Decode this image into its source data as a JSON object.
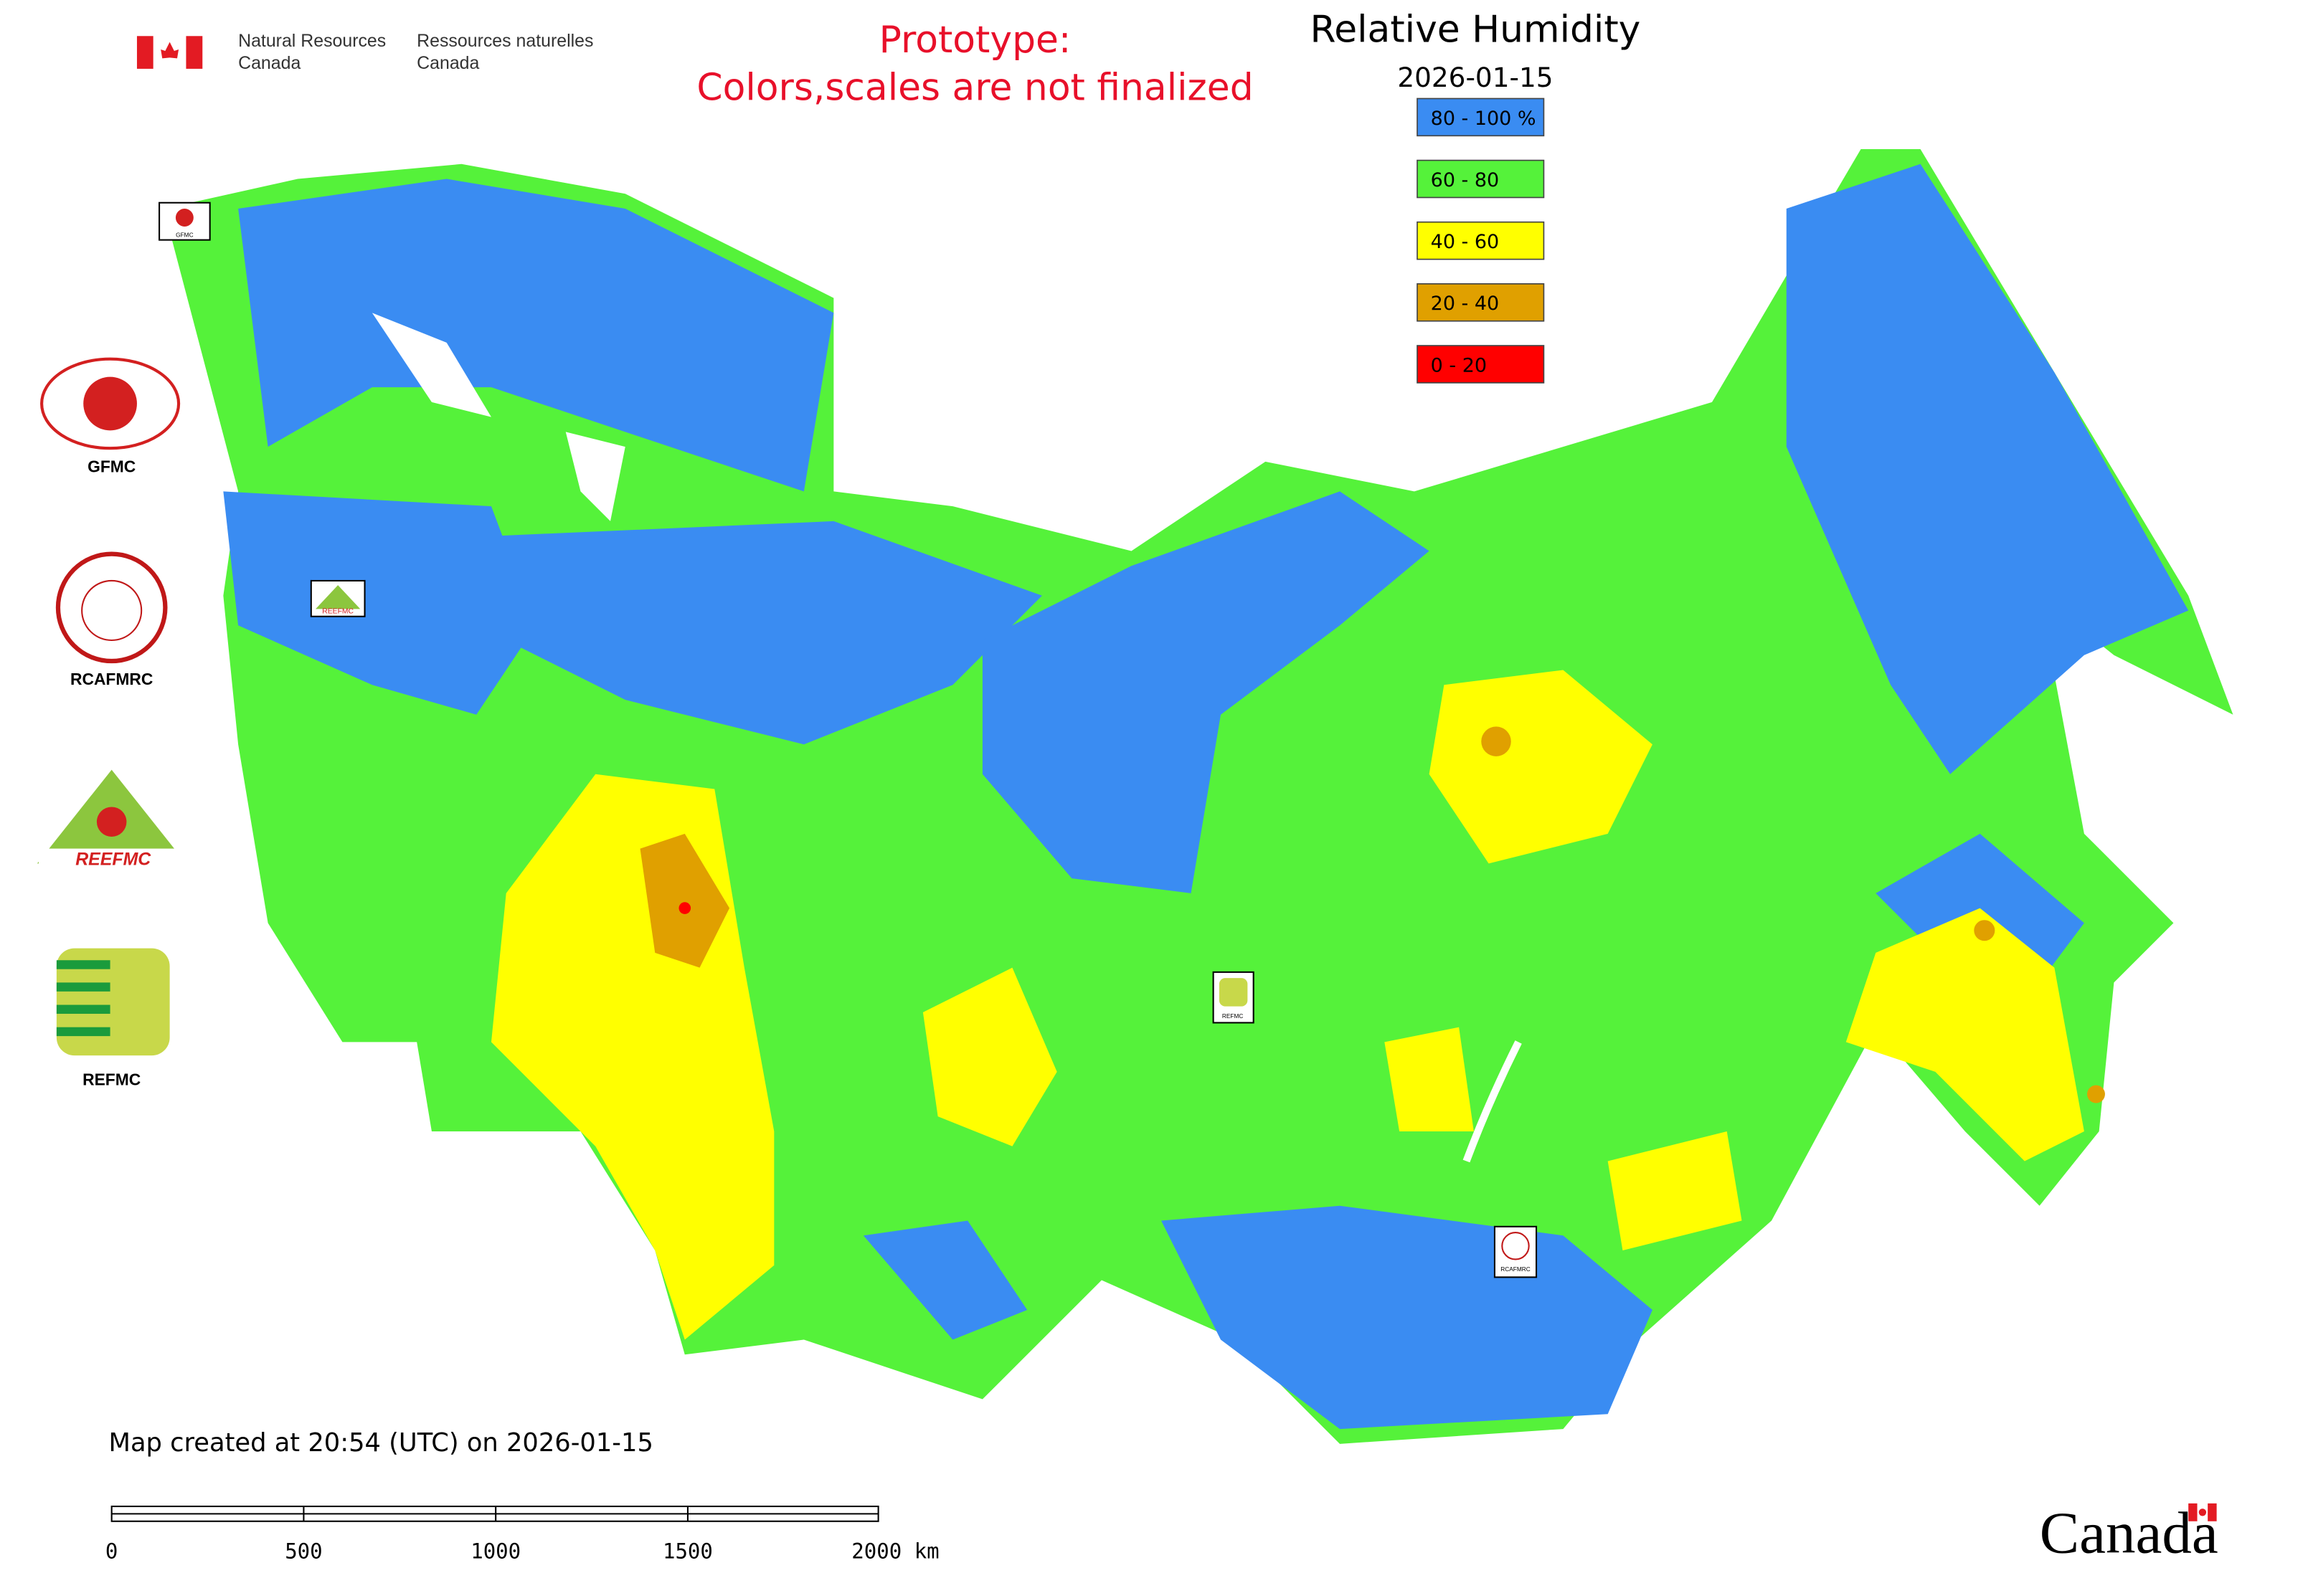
{
  "header": {
    "agency_en": [
      "Natural Resources",
      "Canada"
    ],
    "agency_fr": [
      "Ressources naturelles",
      "Canada"
    ]
  },
  "notice": [
    "Prototype:",
    "Colors,scales are not finalized"
  ],
  "title": "Relative Humidity",
  "date": "2026-01-15",
  "legend": [
    {
      "label": "80 - 100 %",
      "color": "#3a8cf2"
    },
    {
      "label": "60 - 80",
      "color": "#55f23a"
    },
    {
      "label": "40 - 60",
      "color": "#ffff00"
    },
    {
      "label": "20 - 40",
      "color": "#e0a000"
    },
    {
      "label": "0 - 20",
      "color": "#ff0000"
    }
  ],
  "logos": [
    "GFMC",
    "RCAFMRC",
    "REEFMC",
    "REFMC"
  ],
  "map_markers": [
    "GFMC",
    "REEFMC",
    "REFMC",
    "RCAFMRC"
  ],
  "footer": "Map created at 20:54 (UTC) on 2026-01-15",
  "scale_bar": [
    "0",
    "500",
    "1000",
    "1500",
    "2000 km"
  ],
  "wordmark": "Canada"
}
